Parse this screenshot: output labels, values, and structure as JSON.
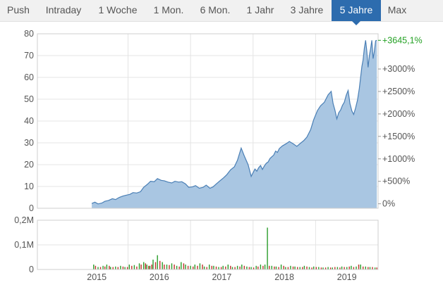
{
  "tabs": [
    {
      "label": "Push",
      "active": false
    },
    {
      "label": "Intraday",
      "active": false
    },
    {
      "label": "1 Woche",
      "active": false
    },
    {
      "label": "1 Mon.",
      "active": false
    },
    {
      "label": "6 Mon.",
      "active": false
    },
    {
      "label": "1 Jahr",
      "active": false
    },
    {
      "label": "3 Jahre",
      "active": false
    },
    {
      "label": "5 Jahre",
      "active": true
    },
    {
      "label": "Max",
      "active": false
    }
  ],
  "colors": {
    "accent": "#2d6cae",
    "price_line": "#4a7fb5",
    "price_fill": "#a9c6e2",
    "volume_up": "#2a9d2a",
    "volume_down": "#c0302b",
    "gain_text": "#22a022"
  },
  "chart_data": [
    {
      "type": "area",
      "name": "price-chart",
      "y_ticks": [
        "0",
        "10",
        "20",
        "30",
        "40",
        "50",
        "60",
        "70",
        "80"
      ],
      "ylim": [
        0,
        80
      ],
      "right_axis_ticks": [
        "0%",
        "+500%",
        "+1000%",
        "+1500%",
        "+2000%",
        "+2500%",
        "+3000%"
      ],
      "right_axis_base": 2.06,
      "last_value_label": "+3645,1%",
      "x_ticks": [
        "2015",
        "2016",
        "2017",
        "2018",
        "2019"
      ],
      "series": [
        {
          "x": [
            2015.42,
            2015.47,
            2015.52,
            2015.58,
            2015.63,
            2015.69,
            2015.75,
            2015.8,
            2015.86,
            2015.92,
            2015.97,
            2016.03,
            2016.08,
            2016.14,
            2016.2,
            2016.25,
            2016.31,
            2016.36,
            2016.42,
            2016.47,
            2016.53,
            2016.58,
            2016.64,
            2016.7,
            2016.75,
            2016.81,
            2016.86,
            2016.92,
            2016.97,
            2017.03,
            2017.08,
            2017.14,
            2017.2,
            2017.25,
            2017.31,
            2017.36,
            2017.42,
            2017.47,
            2017.53,
            2017.58,
            2017.64,
            2017.7,
            2017.75,
            2017.81,
            2017.86,
            2017.92,
            2017.97,
            2018.03,
            2018.06,
            2018.09,
            2018.12,
            2018.15,
            2018.18,
            2018.21,
            2018.24,
            2018.27,
            2018.3,
            2018.33,
            2018.36,
            2018.39,
            2018.42,
            2018.47,
            2018.53,
            2018.58,
            2018.64,
            2018.7,
            2018.75,
            2018.81,
            2018.86,
            2018.92,
            2018.97,
            2019.03,
            2019.08,
            2019.14,
            2019.2,
            2019.25,
            2019.28,
            2019.31,
            2019.34,
            2019.37,
            2019.4,
            2019.43,
            2019.46,
            2019.49,
            2019.52,
            2019.55,
            2019.58,
            2019.61,
            2019.64,
            2019.67,
            2019.7,
            2019.72,
            2019.74,
            2019.76,
            2019.78,
            2019.8,
            2019.82,
            2019.84,
            2019.86,
            2019.88,
            2019.9,
            2019.92,
            2019.94,
            2019.96,
            2019.98
          ],
          "values": [
            2.2,
            2.8,
            2.0,
            2.4,
            3.2,
            3.6,
            4.4,
            4.0,
            5.0,
            5.6,
            6.0,
            6.4,
            7.2,
            7.0,
            7.6,
            9.6,
            11.0,
            12.4,
            12.2,
            13.6,
            12.8,
            12.6,
            12.0,
            11.6,
            12.4,
            12.0,
            12.2,
            11.2,
            9.6,
            9.8,
            10.4,
            9.2,
            9.6,
            10.6,
            9.2,
            9.8,
            11.4,
            12.6,
            14.0,
            15.4,
            17.6,
            19.0,
            22.0,
            27.6,
            24.0,
            20.0,
            14.6,
            18.0,
            17.0,
            18.6,
            19.6,
            17.8,
            19.4,
            20.6,
            21.2,
            22.8,
            23.6,
            24.4,
            26.2,
            25.6,
            27.4,
            28.6,
            29.6,
            30.6,
            29.6,
            28.4,
            29.6,
            31.0,
            32.6,
            36.0,
            40.6,
            44.8,
            47.0,
            48.6,
            52.0,
            53.6,
            48.0,
            45.0,
            41.0,
            43.8,
            45.0,
            47.2,
            48.6,
            51.8,
            54.0,
            48.0,
            44.6,
            43.0,
            46.0,
            49.6,
            55.0,
            60.0,
            65.0,
            68.0,
            73.4,
            77.0,
            72.0,
            64.6,
            70.0,
            73.2,
            77.0,
            68.6,
            72.0,
            76.8,
            77.0
          ]
        }
      ]
    },
    {
      "type": "bar",
      "name": "volume-chart",
      "y_ticks": [
        "0",
        "0,1M",
        "0,2M"
      ],
      "ylim": [
        0,
        0.2
      ],
      "x_ticks": [
        "2015",
        "2016",
        "2017",
        "2018",
        "2019"
      ],
      "up_x": [
        2015.45,
        2015.52,
        2015.6,
        2015.66,
        2015.72,
        2015.8,
        2015.88,
        2015.95,
        2016.02,
        2016.1,
        2016.18,
        2016.25,
        2016.3,
        2016.35,
        2016.4,
        2016.47,
        2016.55,
        2016.62,
        2016.7,
        2016.78,
        2016.85,
        2016.92,
        2017.0,
        2017.07,
        2017.15,
        2017.22,
        2017.3,
        2017.37,
        2017.45,
        2017.52,
        2017.6,
        2017.67,
        2017.75,
        2017.82,
        2017.9,
        2017.97,
        2018.05,
        2018.12,
        2018.19,
        2018.23,
        2018.3,
        2018.37,
        2018.45,
        2018.52,
        2018.6,
        2018.67,
        2018.75,
        2018.82,
        2018.9,
        2018.97,
        2019.05,
        2019.12,
        2019.2,
        2019.27,
        2019.35,
        2019.42,
        2019.5,
        2019.57,
        2019.65,
        2019.72,
        2019.8,
        2019.87,
        2019.95
      ],
      "up_values": [
        0.02,
        0.01,
        0.015,
        0.02,
        0.01,
        0.012,
        0.015,
        0.01,
        0.02,
        0.018,
        0.025,
        0.03,
        0.02,
        0.015,
        0.04,
        0.058,
        0.03,
        0.02,
        0.025,
        0.015,
        0.03,
        0.02,
        0.015,
        0.02,
        0.025,
        0.012,
        0.02,
        0.015,
        0.01,
        0.015,
        0.02,
        0.01,
        0.015,
        0.02,
        0.012,
        0.01,
        0.015,
        0.02,
        0.02,
        0.17,
        0.015,
        0.012,
        0.02,
        0.01,
        0.015,
        0.012,
        0.01,
        0.015,
        0.01,
        0.012,
        0.01,
        0.008,
        0.01,
        0.008,
        0.01,
        0.012,
        0.01,
        0.015,
        0.012,
        0.02,
        0.012,
        0.01,
        0.008
      ],
      "down_x": [
        2015.48,
        2015.56,
        2015.63,
        2015.7,
        2015.76,
        2015.84,
        2015.92,
        2015.99,
        2016.06,
        2016.14,
        2016.21,
        2016.28,
        2016.33,
        2016.38,
        2016.44,
        2016.51,
        2016.58,
        2016.66,
        2016.74,
        2016.82,
        2016.89,
        2016.96,
        2017.04,
        2017.11,
        2017.19,
        2017.26,
        2017.34,
        2017.41,
        2017.49,
        2017.56,
        2017.64,
        2017.71,
        2017.79,
        2017.86,
        2017.94,
        2018.01,
        2018.08,
        2018.16,
        2018.26,
        2018.34,
        2018.41,
        2018.49,
        2018.56,
        2018.64,
        2018.71,
        2018.79,
        2018.86,
        2018.94,
        2019.01,
        2019.09,
        2019.16,
        2019.24,
        2019.31,
        2019.39,
        2019.46,
        2019.54,
        2019.61,
        2019.69,
        2019.76,
        2019.84,
        2019.91,
        2019.98
      ],
      "down_values": [
        0.015,
        0.01,
        0.012,
        0.015,
        0.01,
        0.01,
        0.012,
        0.01,
        0.015,
        0.012,
        0.02,
        0.025,
        0.015,
        0.02,
        0.03,
        0.035,
        0.02,
        0.018,
        0.02,
        0.012,
        0.025,
        0.015,
        0.012,
        0.015,
        0.02,
        0.01,
        0.015,
        0.012,
        0.01,
        0.012,
        0.015,
        0.01,
        0.012,
        0.015,
        0.01,
        0.008,
        0.012,
        0.015,
        0.015,
        0.012,
        0.01,
        0.015,
        0.01,
        0.012,
        0.01,
        0.01,
        0.012,
        0.008,
        0.01,
        0.008,
        0.008,
        0.008,
        0.01,
        0.008,
        0.01,
        0.012,
        0.01,
        0.02,
        0.012,
        0.01,
        0.01,
        0.008
      ]
    }
  ]
}
